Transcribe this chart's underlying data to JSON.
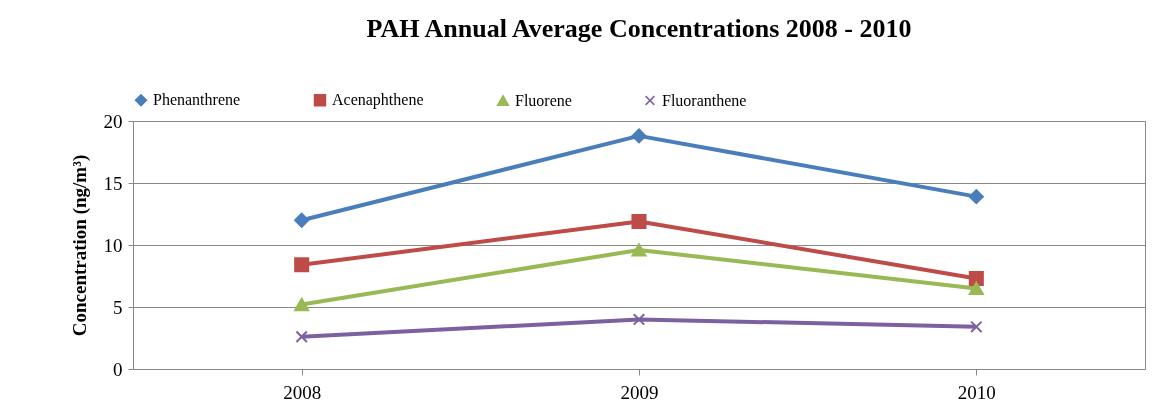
{
  "chart_data": {
    "type": "line",
    "title": "PAH Annual Average Concentrations 2008 - 2010",
    "ylabel": "Concentration (ng/m³)",
    "categories": [
      "2008",
      "2009",
      "2010"
    ],
    "ylim": [
      0,
      20
    ],
    "yticks": [
      0,
      5,
      10,
      15,
      20
    ],
    "grid": "y",
    "legend": "top",
    "series": [
      {
        "name": "Phenanthrene",
        "color": "#4a7ebb",
        "marker": "diamond",
        "values": [
          12.0,
          18.8,
          13.9
        ]
      },
      {
        "name": "Acenaphthene",
        "color": "#be4b48",
        "marker": "square",
        "values": [
          8.4,
          11.9,
          7.3
        ]
      },
      {
        "name": "Fluorene",
        "color": "#98b954",
        "marker": "triangle",
        "values": [
          5.2,
          9.6,
          6.5
        ]
      },
      {
        "name": "Fluoranthene",
        "color": "#7d60a0",
        "marker": "cross",
        "values": [
          2.6,
          4.0,
          3.4
        ]
      }
    ]
  }
}
